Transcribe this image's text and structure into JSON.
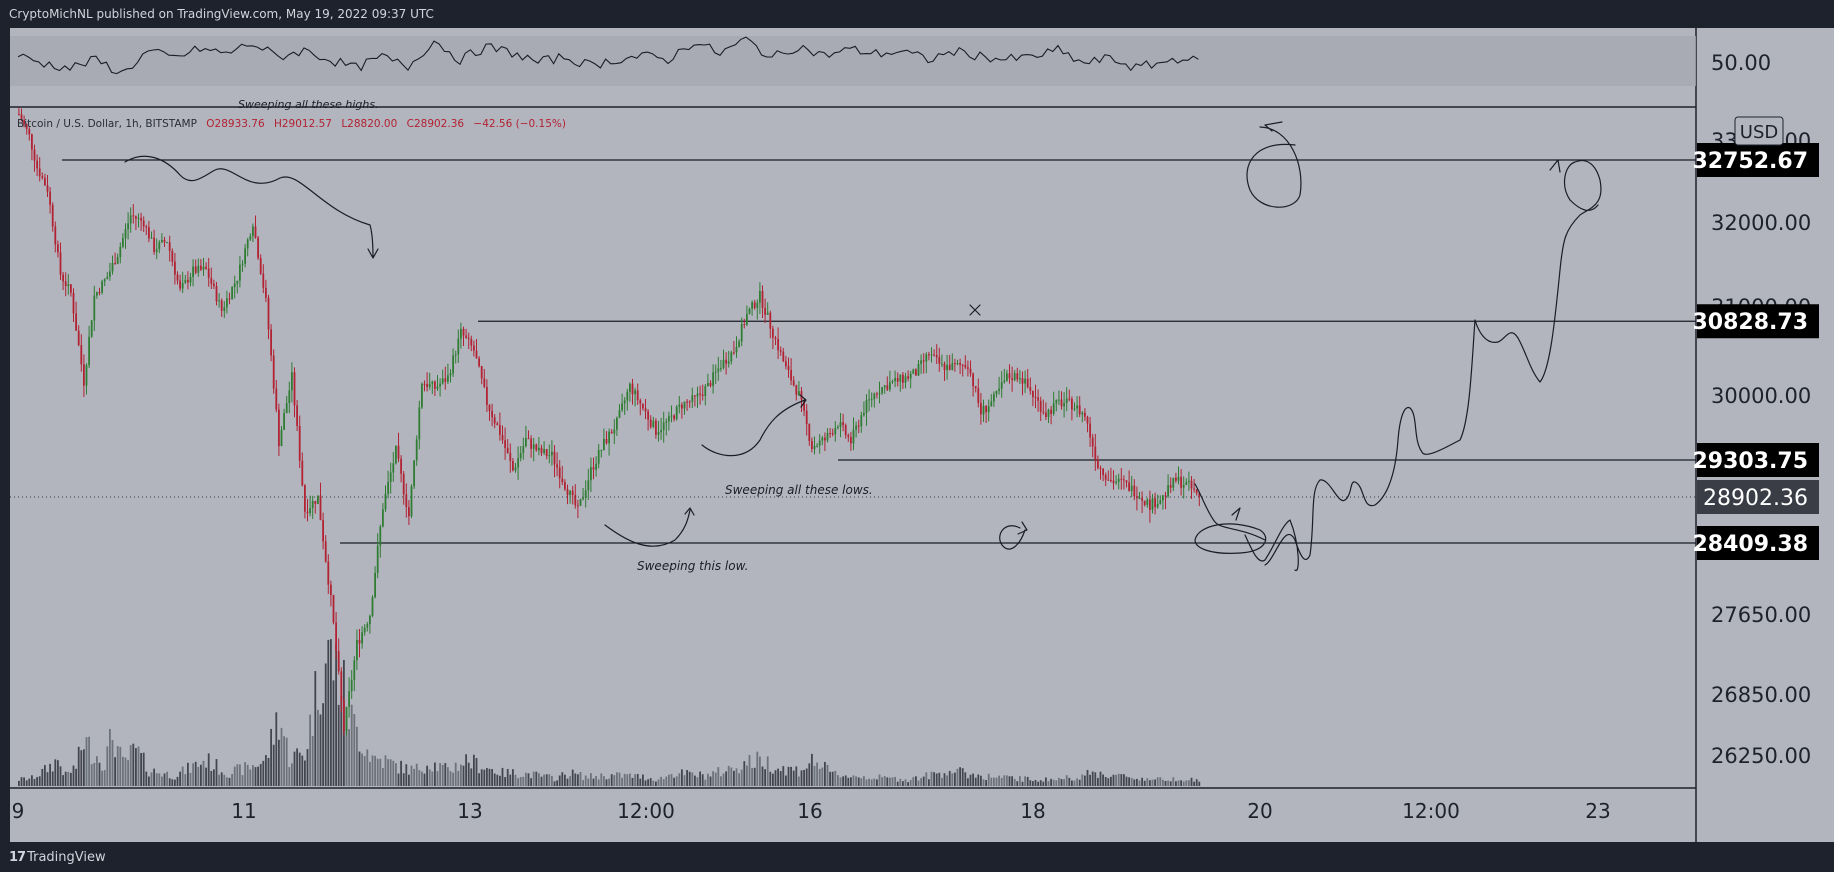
{
  "header": {
    "published": "CryptoMichNL published on TradingView.com, May 19, 2022 09:37 UTC"
  },
  "footer": {
    "brand": "TradingView",
    "logo_mark": "17"
  },
  "colors": {
    "background": "#b2b5be",
    "frame": "#1e222d",
    "up": "#2e7d32",
    "down": "#b22232",
    "label_bg": "#000000"
  },
  "chart_data": {
    "type": "candlestick",
    "symbol_line": {
      "symbol": "Bitcoin / U.S. Dollar, 1h, BITSTAMP",
      "open": "O28933.76",
      "high": "H29012.57",
      "low": "L28820.00",
      "close": "C28902.36",
      "change": "−42.56 (−0.15%)"
    },
    "currency": "USD",
    "oscillator": {
      "level_label": "50.00"
    },
    "x_tick_labels": [
      "9",
      "11",
      "13",
      "12:00",
      "16",
      "18",
      "20",
      "12:00",
      "23"
    ],
    "y_tick_labels": [
      "33000.00",
      "32000.00",
      "31000.00",
      "30000.00",
      "27650.00",
      "26850.00",
      "26250.00"
    ],
    "horizontal_levels": [
      {
        "value": 32752.67,
        "label": "32752.67"
      },
      {
        "value": 30828.73,
        "label": "30828.73"
      },
      {
        "value": 29303.75,
        "label": "29303.75"
      },
      {
        "value": 28409.38,
        "label": "28409.38"
      }
    ],
    "last_price": {
      "value": 28902.36,
      "label": "28902.36"
    },
    "annotations": [
      "Sweeping all these lows.",
      "Sweeping this low.",
      "Sweeping all these highs."
    ],
    "price_path": [
      [
        0,
        33320
      ],
      [
        4,
        33050
      ],
      [
        7,
        32660
      ],
      [
        11,
        32400
      ],
      [
        16,
        31380
      ],
      [
        20,
        31150
      ],
      [
        25,
        30150
      ],
      [
        29,
        31120
      ],
      [
        34,
        31350
      ],
      [
        38,
        31620
      ],
      [
        43,
        32080
      ],
      [
        48,
        32000
      ],
      [
        52,
        31680
      ],
      [
        57,
        31780
      ],
      [
        62,
        31180
      ],
      [
        67,
        31420
      ],
      [
        72,
        31430
      ],
      [
        78,
        30950
      ],
      [
        84,
        31340
      ],
      [
        90,
        32000
      ],
      [
        95,
        31050
      ],
      [
        100,
        29500
      ],
      [
        105,
        30200
      ],
      [
        110,
        28760
      ],
      [
        115,
        28900
      ],
      [
        120,
        27800
      ],
      [
        125,
        26500
      ],
      [
        130,
        27350
      ],
      [
        135,
        27650
      ],
      [
        140,
        28800
      ],
      [
        145,
        29400
      ],
      [
        150,
        28700
      ],
      [
        155,
        30150
      ],
      [
        160,
        30080
      ],
      [
        165,
        30200
      ],
      [
        170,
        30700
      ],
      [
        175,
        30500
      ],
      [
        180,
        29920
      ],
      [
        185,
        29600
      ],
      [
        190,
        29190
      ],
      [
        195,
        29520
      ],
      [
        200,
        29390
      ],
      [
        205,
        29350
      ],
      [
        210,
        29040
      ],
      [
        215,
        28750
      ],
      [
        220,
        29190
      ],
      [
        225,
        29480
      ],
      [
        230,
        29700
      ],
      [
        235,
        30100
      ],
      [
        240,
        29860
      ],
      [
        245,
        29620
      ],
      [
        250,
        29720
      ],
      [
        255,
        29900
      ],
      [
        260,
        29950
      ],
      [
        265,
        30100
      ],
      [
        270,
        30340
      ],
      [
        275,
        30500
      ],
      [
        280,
        30900
      ],
      [
        285,
        31120
      ],
      [
        290,
        30700
      ],
      [
        295,
        30300
      ],
      [
        300,
        30000
      ],
      [
        305,
        29450
      ],
      [
        310,
        29520
      ],
      [
        315,
        29700
      ],
      [
        320,
        29500
      ],
      [
        325,
        29850
      ],
      [
        330,
        30050
      ],
      [
        335,
        30130
      ],
      [
        340,
        30180
      ],
      [
        345,
        30250
      ],
      [
        350,
        30460
      ],
      [
        355,
        30320
      ],
      [
        360,
        30320
      ],
      [
        365,
        30350
      ],
      [
        370,
        29810
      ],
      [
        375,
        29950
      ],
      [
        380,
        30200
      ],
      [
        385,
        30220
      ],
      [
        390,
        30000
      ],
      [
        395,
        29800
      ],
      [
        400,
        29920
      ],
      [
        405,
        29900
      ],
      [
        410,
        29780
      ],
      [
        415,
        29250
      ],
      [
        420,
        29080
      ],
      [
        425,
        29050
      ],
      [
        430,
        28950
      ],
      [
        435,
        28820
      ],
      [
        440,
        28900
      ],
      [
        445,
        29090
      ],
      [
        450,
        29020
      ],
      [
        454,
        28902
      ]
    ],
    "volume_path": [
      [
        0,
        0.05
      ],
      [
        5,
        0.06
      ],
      [
        10,
        0.12
      ],
      [
        15,
        0.2
      ],
      [
        18,
        0.08
      ],
      [
        22,
        0.15
      ],
      [
        25,
        0.35
      ],
      [
        29,
        0.25
      ],
      [
        33,
        0.18
      ],
      [
        36,
        0.4
      ],
      [
        40,
        0.17
      ],
      [
        45,
        0.28
      ],
      [
        50,
        0.12
      ],
      [
        55,
        0.1
      ],
      [
        60,
        0.08
      ],
      [
        66,
        0.14
      ],
      [
        72,
        0.2
      ],
      [
        80,
        0.1
      ],
      [
        88,
        0.14
      ],
      [
        95,
        0.2
      ],
      [
        100,
        0.55
      ],
      [
        104,
        0.22
      ],
      [
        110,
        0.25
      ],
      [
        116,
        0.9
      ],
      [
        120,
        1.0
      ],
      [
        124,
        0.8
      ],
      [
        128,
        0.5
      ],
      [
        132,
        0.35
      ],
      [
        136,
        0.22
      ],
      [
        140,
        0.2
      ],
      [
        146,
        0.15
      ],
      [
        152,
        0.12
      ],
      [
        158,
        0.18
      ],
      [
        165,
        0.12
      ],
      [
        172,
        0.2
      ],
      [
        180,
        0.14
      ],
      [
        186,
        0.1
      ],
      [
        192,
        0.1
      ],
      [
        200,
        0.08
      ],
      [
        206,
        0.06
      ],
      [
        212,
        0.1
      ],
      [
        218,
        0.07
      ],
      [
        226,
        0.08
      ],
      [
        234,
        0.08
      ],
      [
        240,
        0.07
      ],
      [
        246,
        0.05
      ],
      [
        252,
        0.1
      ],
      [
        258,
        0.09
      ],
      [
        264,
        0.08
      ],
      [
        272,
        0.12
      ],
      [
        280,
        0.18
      ],
      [
        286,
        0.2
      ],
      [
        292,
        0.14
      ],
      [
        300,
        0.12
      ],
      [
        306,
        0.2
      ],
      [
        312,
        0.1
      ],
      [
        318,
        0.08
      ],
      [
        326,
        0.07
      ],
      [
        334,
        0.06
      ],
      [
        342,
        0.05
      ],
      [
        350,
        0.08
      ],
      [
        358,
        0.12
      ],
      [
        366,
        0.09
      ],
      [
        374,
        0.07
      ],
      [
        382,
        0.06
      ],
      [
        390,
        0.05
      ],
      [
        398,
        0.05
      ],
      [
        406,
        0.07
      ],
      [
        414,
        0.1
      ],
      [
        422,
        0.08
      ],
      [
        430,
        0.06
      ],
      [
        438,
        0.05
      ],
      [
        446,
        0.06
      ],
      [
        454,
        0.04
      ]
    ],
    "oscillator_path": [
      [
        0,
        0.62
      ],
      [
        10,
        0.48
      ],
      [
        20,
        0.4
      ],
      [
        30,
        0.55
      ],
      [
        40,
        0.3
      ],
      [
        50,
        0.7
      ],
      [
        60,
        0.58
      ],
      [
        70,
        0.75
      ],
      [
        80,
        0.66
      ],
      [
        90,
        0.85
      ],
      [
        100,
        0.6
      ],
      [
        110,
        0.72
      ],
      [
        120,
        0.55
      ],
      [
        130,
        0.4
      ],
      [
        140,
        0.6
      ],
      [
        150,
        0.42
      ],
      [
        160,
        0.9
      ],
      [
        170,
        0.55
      ],
      [
        180,
        0.78
      ],
      [
        190,
        0.68
      ],
      [
        200,
        0.5
      ],
      [
        210,
        0.6
      ],
      [
        220,
        0.45
      ],
      [
        230,
        0.55
      ],
      [
        240,
        0.62
      ],
      [
        250,
        0.55
      ],
      [
        260,
        0.88
      ],
      [
        270,
        0.66
      ],
      [
        280,
        0.92
      ],
      [
        290,
        0.58
      ],
      [
        300,
        0.8
      ],
      [
        310,
        0.62
      ],
      [
        320,
        0.74
      ],
      [
        330,
        0.66
      ],
      [
        340,
        0.7
      ],
      [
        350,
        0.55
      ],
      [
        360,
        0.7
      ],
      [
        370,
        0.62
      ],
      [
        380,
        0.55
      ],
      [
        390,
        0.6
      ],
      [
        400,
        0.72
      ],
      [
        410,
        0.48
      ],
      [
        420,
        0.58
      ],
      [
        430,
        0.4
      ],
      [
        440,
        0.5
      ],
      [
        448,
        0.6
      ],
      [
        454,
        0.5
      ]
    ]
  }
}
